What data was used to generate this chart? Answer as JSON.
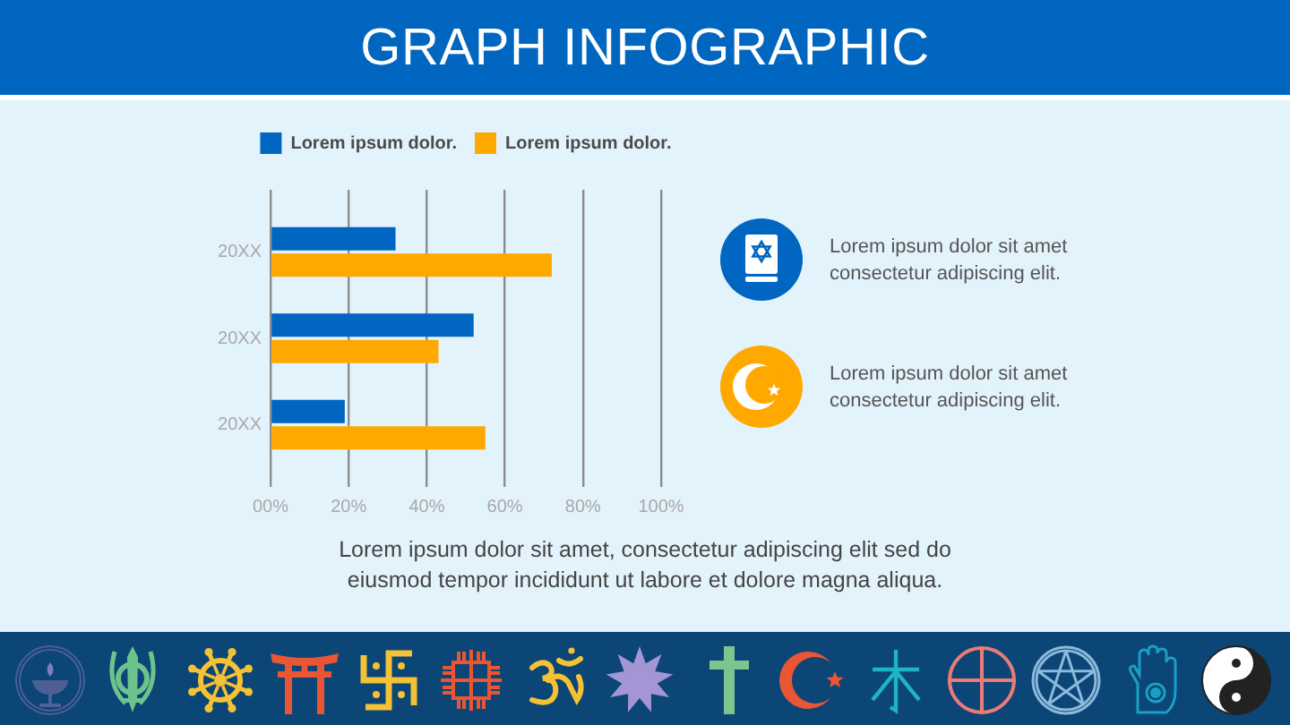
{
  "chart_data": {
    "type": "bar",
    "orientation": "horizontal",
    "title": "GRAPH INFOGRAPHIC",
    "categories": [
      "20XX",
      "20XX",
      "20XX"
    ],
    "series": [
      {
        "name": "Lorem ipsum dolor.",
        "color": "#0066c2",
        "values": [
          32,
          52,
          19
        ]
      },
      {
        "name": "Lorem ipsum dolor.",
        "color": "#ffa800",
        "values": [
          72,
          43,
          55
        ]
      }
    ],
    "xlim": [
      0,
      100
    ],
    "xticks": [
      {
        "value": 0,
        "label": "00%"
      },
      {
        "value": 20,
        "label": "20%"
      },
      {
        "value": 40,
        "label": "40%"
      },
      {
        "value": 60,
        "label": "60%"
      },
      {
        "value": 80,
        "label": "80%"
      },
      {
        "value": 100,
        "label": "100%"
      }
    ],
    "grid": "x",
    "legend": "top",
    "annotations": [
      "Lorem ipsum dolor sit amet consectetur adipiscing elit.",
      "Lorem ipsum dolor sit amet consectetur adipiscing elit.",
      "Lorem ipsum dolor sit amet, consectetur adipiscing elit sed do eiusmod tempor incididunt ut labore et dolore magna aliqua."
    ]
  }
}
